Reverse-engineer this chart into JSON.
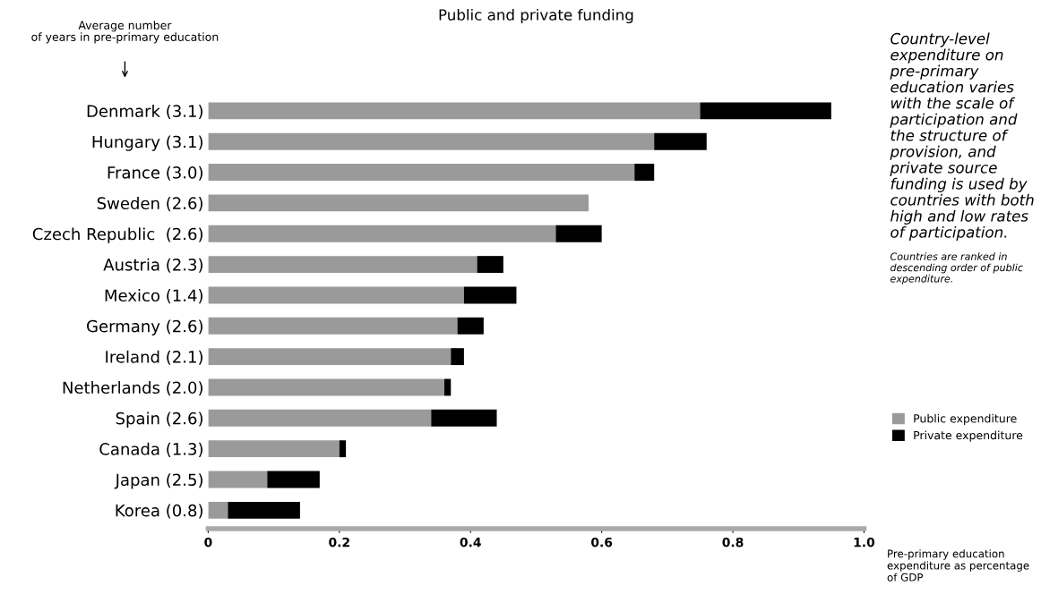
{
  "chart_data": {
    "type": "bar",
    "orientation": "horizontal",
    "stacked": true,
    "title": "Public and private funding",
    "xlabel": "Pre-primary education expenditure as percentage of GDP",
    "categories": [
      "Denmark (3.1)",
      "Hungary (3.1)",
      "France (3.0)",
      "Sweden (2.6)",
      "Czech Republic  (2.6)",
      "Austria (2.3)",
      "Mexico (1.4)",
      "Germany (2.6)",
      "Ireland (2.1)",
      "Netherlands (2.0)",
      "Spain (2.6)",
      "Canada (1.3)",
      "Japan (2.5)",
      "Korea (0.8)"
    ],
    "series": [
      {
        "name": "Public expenditure",
        "color": "#9a9a9a",
        "values": [
          0.75,
          0.68,
          0.65,
          0.58,
          0.53,
          0.41,
          0.39,
          0.38,
          0.37,
          0.36,
          0.34,
          0.2,
          0.09,
          0.03
        ]
      },
      {
        "name": "Private expenditure",
        "color": "#000000",
        "values": [
          0.2,
          0.08,
          0.03,
          0,
          0.07,
          0.04,
          0.08,
          0.04,
          0.02,
          0.01,
          0.1,
          0.01,
          0.08,
          0.11
        ]
      }
    ],
    "xlim": [
      0,
      1.0
    ],
    "xticks": [
      0,
      0.2,
      0.4,
      0.6,
      0.8,
      {
        "value": 1.0,
        "label": "1.0"
      }
    ],
    "grid": false,
    "legend": "right",
    "annotations": [
      "Average number\nof years in pre-primary education",
      "Country-level expenditure on pre-primary education varies with the scale of participation and the structure of provision, and private source funding is used by countries with both high and low rates of participation.",
      "Countries are ranked in descending order of public expenditure."
    ]
  }
}
